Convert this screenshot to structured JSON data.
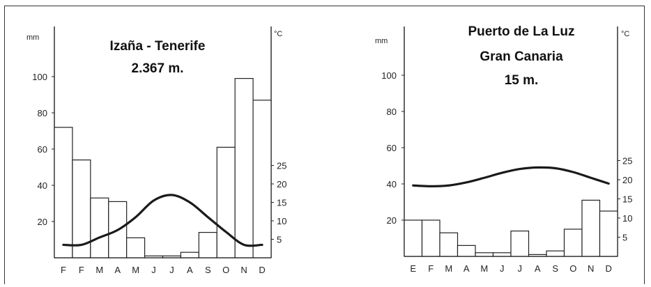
{
  "chart_data": [
    {
      "type": "bar",
      "title_lines": [
        "Izaña - Tenerife",
        "2.367 m."
      ],
      "ylabel": "mm",
      "y2label": "°C",
      "categories": [
        "F",
        "F",
        "M",
        "A",
        "M",
        "J",
        "J",
        "A",
        "S",
        "O",
        "N",
        "D"
      ],
      "ylim": [
        0,
        112
      ],
      "yticks": [
        20,
        40,
        60,
        80,
        100
      ],
      "y2lim": [
        0,
        35
      ],
      "y2ticks": [
        5,
        10,
        15,
        20,
        25
      ],
      "series": [
        {
          "kind": "bar",
          "values": [
            72,
            54,
            33,
            31,
            11,
            1,
            1,
            3,
            14,
            61,
            99,
            87
          ]
        },
        {
          "kind": "line",
          "axis": "y2",
          "values": [
            3.5,
            3.5,
            5.5,
            7.5,
            11,
            15.5,
            17,
            15,
            11,
            7,
            3.5,
            3.5
          ]
        }
      ]
    },
    {
      "type": "bar",
      "title_lines": [
        "Puerto de La Luz",
        "Gran Canaria",
        "15 m."
      ],
      "ylabel": "mm",
      "y2label": "°C",
      "categories": [
        "E",
        "F",
        "M",
        "A",
        "M",
        "J",
        "J",
        "A",
        "S",
        "O",
        "N",
        "D"
      ],
      "ylim": [
        0,
        112
      ],
      "yticks": [
        20,
        40,
        60,
        80,
        100
      ],
      "y2lim": [
        0,
        35
      ],
      "y2ticks": [
        5,
        10,
        15,
        20,
        25
      ],
      "series": [
        {
          "kind": "bar",
          "values": [
            20,
            20,
            13,
            6,
            2,
            2,
            14,
            1,
            3,
            15,
            31,
            25
          ]
        },
        {
          "kind": "line",
          "axis": "y2",
          "values": [
            18.5,
            18.3,
            18.5,
            19.3,
            20.5,
            21.8,
            22.8,
            23.2,
            23,
            22,
            20.5,
            19
          ]
        }
      ]
    }
  ]
}
